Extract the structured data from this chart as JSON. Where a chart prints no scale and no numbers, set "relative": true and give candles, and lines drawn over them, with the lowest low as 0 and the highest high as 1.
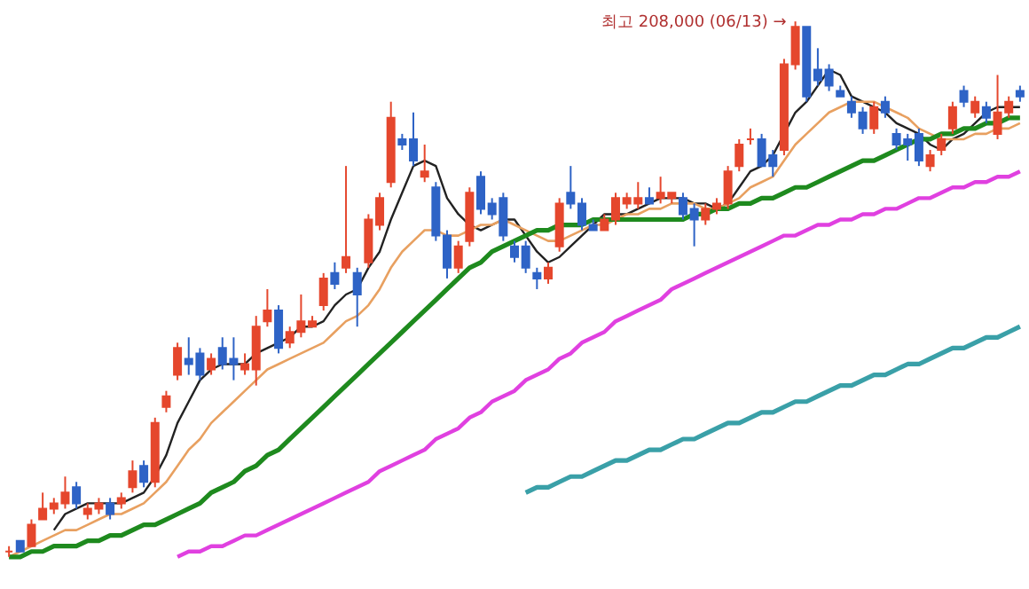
{
  "chart_data": {
    "type": "candlestick",
    "relative": true,
    "categories": [
      null,
      null,
      null,
      null,
      null,
      null,
      null,
      null,
      null,
      null,
      null,
      null,
      null,
      null,
      null,
      null,
      null,
      null,
      null,
      null,
      null,
      null,
      null,
      null,
      null,
      null,
      null,
      null,
      null,
      null,
      null,
      null,
      null,
      null,
      null,
      null,
      null,
      null,
      null,
      null,
      null,
      null,
      null,
      null,
      null,
      null,
      null,
      null,
      null,
      null,
      null,
      null,
      null,
      null,
      null,
      null,
      null,
      null,
      null,
      null,
      null,
      null,
      null,
      null,
      null,
      null,
      null,
      null,
      null,
      null,
      null,
      null,
      null,
      null,
      null,
      null,
      null,
      null,
      null,
      null,
      null,
      null,
      null,
      null,
      null,
      null,
      null,
      null,
      null,
      null,
      null
    ],
    "ohlc": [
      [
        0.01,
        0.02,
        0,
        0.01
      ],
      [
        0.03,
        0.03,
        0.01,
        0.01
      ],
      [
        0.02,
        0.07,
        0.02,
        0.06
      ],
      [
        0.07,
        0.12,
        0.07,
        0.09
      ],
      [
        0.09,
        0.11,
        0.08,
        0.1
      ],
      [
        0.1,
        0.15,
        0.09,
        0.12
      ],
      [
        0.13,
        0.14,
        0.09,
        0.1
      ],
      [
        0.08,
        0.1,
        0.07,
        0.09
      ],
      [
        0.09,
        0.11,
        0.08,
        0.1
      ],
      [
        0.1,
        0.11,
        0.07,
        0.08
      ],
      [
        0.1,
        0.12,
        0.09,
        0.11
      ],
      [
        0.13,
        0.18,
        0.12,
        0.16
      ],
      [
        0.17,
        0.18,
        0.13,
        0.14
      ],
      [
        0.14,
        0.26,
        0.13,
        0.25
      ],
      [
        0.28,
        0.31,
        0.27,
        0.3
      ],
      [
        0.34,
        0.4,
        0.33,
        0.39
      ],
      [
        0.37,
        0.41,
        0.34,
        0.36
      ],
      [
        0.38,
        0.39,
        0.33,
        0.34
      ],
      [
        0.35,
        0.38,
        0.34,
        0.37
      ],
      [
        0.39,
        0.41,
        0.35,
        0.36
      ],
      [
        0.37,
        0.41,
        0.33,
        0.36
      ],
      [
        0.35,
        0.38,
        0.34,
        0.36
      ],
      [
        0.35,
        0.45,
        0.32,
        0.43
      ],
      [
        0.44,
        0.5,
        0.43,
        0.46
      ],
      [
        0.46,
        0.47,
        0.38,
        0.39
      ],
      [
        0.4,
        0.43,
        0.39,
        0.42
      ],
      [
        0.42,
        0.49,
        0.41,
        0.44
      ],
      [
        0.43,
        0.45,
        0.43,
        0.44
      ],
      [
        0.47,
        0.53,
        0.46,
        0.52
      ],
      [
        0.53,
        0.55,
        0.5,
        0.51
      ],
      [
        0.54,
        0.73,
        0.53,
        0.56
      ],
      [
        0.53,
        0.54,
        0.43,
        0.49
      ],
      [
        0.55,
        0.64,
        0.54,
        0.63
      ],
      [
        0.62,
        0.68,
        0.61,
        0.67
      ],
      [
        0.7,
        0.85,
        0.69,
        0.82
      ],
      [
        0.78,
        0.79,
        0.76,
        0.77
      ],
      [
        0.78,
        0.83,
        0.73,
        0.74
      ],
      [
        0.71,
        0.77,
        0.7,
        0.72
      ],
      [
        0.69,
        0.7,
        0.59,
        0.6
      ],
      [
        0.6,
        0.61,
        0.52,
        0.54
      ],
      [
        0.54,
        0.59,
        0.53,
        0.58
      ],
      [
        0.59,
        0.69,
        0.58,
        0.68
      ],
      [
        0.71,
        0.72,
        0.64,
        0.65
      ],
      [
        0.66,
        0.67,
        0.63,
        0.64
      ],
      [
        0.67,
        0.68,
        0.59,
        0.6
      ],
      [
        0.58,
        0.59,
        0.55,
        0.56
      ],
      [
        0.58,
        0.59,
        0.53,
        0.54
      ],
      [
        0.53,
        0.54,
        0.5,
        0.52
      ],
      [
        0.52,
        0.55,
        0.51,
        0.54
      ],
      [
        0.58,
        0.67,
        0.57,
        0.66
      ],
      [
        0.68,
        0.73,
        0.65,
        0.66
      ],
      [
        0.66,
        0.67,
        0.61,
        0.62
      ],
      [
        0.62,
        0.63,
        0.61,
        0.61
      ],
      [
        0.61,
        0.64,
        0.61,
        0.63
      ],
      [
        0.63,
        0.68,
        0.62,
        0.67
      ],
      [
        0.66,
        0.68,
        0.65,
        0.67
      ],
      [
        0.66,
        0.7,
        0.65,
        0.67
      ],
      [
        0.67,
        0.69,
        0.66,
        0.66
      ],
      [
        0.67,
        0.71,
        0.66,
        0.68
      ],
      [
        0.67,
        0.68,
        0.66,
        0.68
      ],
      [
        0.67,
        0.68,
        0.63,
        0.64
      ],
      [
        0.65,
        0.66,
        0.58,
        0.63
      ],
      [
        0.63,
        0.66,
        0.62,
        0.65
      ],
      [
        0.65,
        0.67,
        0.64,
        0.66
      ],
      [
        0.66,
        0.73,
        0.65,
        0.72
      ],
      [
        0.73,
        0.78,
        0.72,
        0.77
      ],
      [
        0.78,
        0.8,
        0.77,
        0.78
      ],
      [
        0.78,
        0.79,
        0.73,
        0.73
      ],
      [
        0.75,
        0.76,
        0.71,
        0.73
      ],
      [
        0.76,
        0.93,
        0.75,
        0.92
      ],
      [
        0.92,
        1,
        0.91,
        0.99
      ],
      [
        0.99,
        0.99,
        0.85,
        0.86
      ],
      [
        0.91,
        0.95,
        0.88,
        0.89
      ],
      [
        0.91,
        0.92,
        0.87,
        0.88
      ],
      [
        0.87,
        0.88,
        0.86,
        0.86
      ],
      [
        0.85,
        0.86,
        0.82,
        0.83
      ],
      [
        0.83,
        0.84,
        0.79,
        0.8
      ],
      [
        0.8,
        0.85,
        0.79,
        0.84
      ],
      [
        0.85,
        0.86,
        0.82,
        0.83
      ],
      [
        0.79,
        0.8,
        0.76,
        0.77
      ],
      [
        0.78,
        0.79,
        0.74,
        0.77
      ],
      [
        0.79,
        0.8,
        0.73,
        0.74
      ],
      [
        0.73,
        0.76,
        0.72,
        0.75
      ],
      [
        0.76,
        0.79,
        0.75,
        0.78
      ],
      [
        0.8,
        0.85,
        0.79,
        0.84
      ],
      [
        0.87,
        0.88,
        0.84,
        0.85
      ],
      [
        0.83,
        0.86,
        0.82,
        0.85
      ],
      [
        0.84,
        0.85,
        0.81,
        0.82
      ],
      [
        0.79,
        0.9,
        0.78,
        0.83
      ],
      [
        0.83,
        0.86,
        0.82,
        0.85
      ],
      [
        0.87,
        0.88,
        0.85,
        0.86
      ]
    ],
    "colors": [
      "#e5472d",
      "#2e63c6",
      "#e5472d",
      "#e5472d",
      "#e5472d",
      "#e5472d",
      "#2e63c6",
      "#e5472d",
      "#e5472d",
      "#2e63c6",
      "#e5472d",
      "#e5472d",
      "#2e63c6",
      "#e5472d",
      "#e5472d",
      "#e5472d",
      "#2e63c6",
      "#2e63c6",
      "#e5472d",
      "#2e63c6",
      "#2e63c6",
      "#e5472d",
      "#e5472d",
      "#e5472d",
      "#2e63c6",
      "#e5472d",
      "#e5472d",
      "#e5472d",
      "#e5472d",
      "#2e63c6",
      "#e5472d",
      "#2e63c6",
      "#e5472d",
      "#e5472d",
      "#e5472d",
      "#2e63c6",
      "#2e63c6",
      "#e5472d",
      "#2e63c6",
      "#2e63c6",
      "#e5472d",
      "#e5472d",
      "#2e63c6",
      "#2e63c6",
      "#2e63c6",
      "#2e63c6",
      "#2e63c6",
      "#2e63c6",
      "#e5472d",
      "#e5472d",
      "#2e63c6",
      "#2e63c6",
      "#2e63c6",
      "#e5472d",
      "#e5472d",
      "#e5472d",
      "#e5472d",
      "#2e63c6",
      "#e5472d",
      "#e5472d",
      "#2e63c6",
      "#2e63c6",
      "#e5472d",
      "#e5472d",
      "#e5472d",
      "#e5472d",
      "#e5472d",
      "#2e63c6",
      "#2e63c6",
      "#e5472d",
      "#e5472d",
      "#2e63c6",
      "#2e63c6",
      "#2e63c6",
      "#2e63c6",
      "#2e63c6",
      "#2e63c6",
      "#e5472d",
      "#2e63c6",
      "#2e63c6",
      "#2e63c6",
      "#2e63c6",
      "#e5472d",
      "#e5472d",
      "#e5472d",
      "#2e63c6",
      "#e5472d",
      "#2e63c6",
      "#e5472d",
      "#e5472d",
      "#2e63c6"
    ],
    "series": [
      {
        "type": "line",
        "color": "#222222",
        "values": [
          null,
          null,
          null,
          null,
          0.05,
          0.08,
          0.09,
          0.1,
          0.1,
          0.1,
          0.1,
          0.11,
          0.12,
          0.15,
          0.19,
          0.25,
          0.29,
          0.33,
          0.35,
          0.36,
          0.36,
          0.36,
          0.38,
          0.39,
          0.4,
          0.41,
          0.43,
          0.43,
          0.44,
          0.47,
          0.49,
          0.5,
          0.54,
          0.57,
          0.63,
          0.68,
          0.73,
          0.74,
          0.73,
          0.67,
          0.64,
          0.62,
          0.61,
          0.62,
          0.63,
          0.63,
          0.6,
          0.57,
          0.55,
          0.56,
          0.58,
          0.6,
          0.62,
          0.64,
          0.64,
          0.64,
          0.65,
          0.66,
          0.67,
          0.67,
          0.67,
          0.66,
          0.66,
          0.65,
          0.66,
          0.69,
          0.72,
          0.73,
          0.75,
          0.79,
          0.83,
          0.85,
          0.88,
          0.91,
          0.9,
          0.86,
          0.85,
          0.84,
          0.83,
          0.81,
          0.8,
          0.79,
          0.77,
          0.76,
          0.78,
          0.79,
          0.81,
          0.83,
          0.84,
          0.84,
          0.84
        ]
      },
      {
        "type": "line",
        "color": "#e8a060",
        "values": [
          0.0,
          0.01,
          0.02,
          0.03,
          0.04,
          0.05,
          0.05,
          0.06,
          0.07,
          0.08,
          0.08,
          0.09,
          0.1,
          0.12,
          0.14,
          0.17,
          0.2,
          0.22,
          0.25,
          0.27,
          0.29,
          0.31,
          0.33,
          0.35,
          0.36,
          0.37,
          0.38,
          0.39,
          0.4,
          0.42,
          0.44,
          0.45,
          0.47,
          0.5,
          0.54,
          0.57,
          0.59,
          0.61,
          0.61,
          0.6,
          0.6,
          0.61,
          0.62,
          0.62,
          0.63,
          0.62,
          0.61,
          0.6,
          0.59,
          0.59,
          0.6,
          0.61,
          0.62,
          0.62,
          0.63,
          0.64,
          0.64,
          0.65,
          0.65,
          0.66,
          0.66,
          0.66,
          0.65,
          0.65,
          0.66,
          0.67,
          0.69,
          0.7,
          0.71,
          0.74,
          0.77,
          0.79,
          0.81,
          0.83,
          0.84,
          0.85,
          0.85,
          0.85,
          0.84,
          0.83,
          0.82,
          0.8,
          0.79,
          0.78,
          0.78,
          0.78,
          0.79,
          0.79,
          0.8,
          0.8,
          0.81
        ]
      },
      {
        "type": "line",
        "color": "#1e8a1e",
        "values": [
          0.0,
          0.0,
          0.01,
          0.01,
          0.02,
          0.02,
          0.02,
          0.03,
          0.03,
          0.04,
          0.04,
          0.05,
          0.06,
          0.06,
          0.07,
          0.08,
          0.09,
          0.1,
          0.12,
          0.13,
          0.14,
          0.16,
          0.17,
          0.19,
          0.2,
          0.22,
          0.24,
          0.26,
          0.28,
          0.3,
          0.32,
          0.34,
          0.36,
          0.38,
          0.4,
          0.42,
          0.44,
          0.46,
          0.48,
          0.5,
          0.52,
          0.54,
          0.55,
          0.57,
          0.58,
          0.59,
          0.6,
          0.61,
          0.61,
          0.62,
          0.62,
          0.62,
          0.63,
          0.63,
          0.63,
          0.63,
          0.63,
          0.63,
          0.63,
          0.63,
          0.63,
          0.64,
          0.64,
          0.65,
          0.65,
          0.66,
          0.66,
          0.67,
          0.67,
          0.68,
          0.69,
          0.69,
          0.7,
          0.71,
          0.72,
          0.73,
          0.74,
          0.74,
          0.75,
          0.76,
          0.77,
          0.78,
          0.78,
          0.79,
          0.79,
          0.8,
          0.8,
          0.81,
          0.81,
          0.82,
          0.82
        ]
      },
      {
        "type": "line",
        "color": "#e040e0",
        "values": [
          null,
          null,
          null,
          null,
          null,
          null,
          null,
          null,
          null,
          null,
          null,
          null,
          null,
          null,
          null,
          0.0,
          0.01,
          0.01,
          0.02,
          0.02,
          0.03,
          0.04,
          0.04,
          0.05,
          0.06,
          0.07,
          0.08,
          0.09,
          0.1,
          0.11,
          0.12,
          0.13,
          0.14,
          0.16,
          0.17,
          0.18,
          0.19,
          0.2,
          0.22,
          0.23,
          0.24,
          0.26,
          0.27,
          0.29,
          0.3,
          0.31,
          0.33,
          0.34,
          0.35,
          0.37,
          0.38,
          0.4,
          0.41,
          0.42,
          0.44,
          0.45,
          0.46,
          0.47,
          0.48,
          0.5,
          0.51,
          0.52,
          0.53,
          0.54,
          0.55,
          0.56,
          0.57,
          0.58,
          0.59,
          0.6,
          0.6,
          0.61,
          0.62,
          0.62,
          0.63,
          0.63,
          0.64,
          0.64,
          0.65,
          0.65,
          0.66,
          0.67,
          0.67,
          0.68,
          0.69,
          0.69,
          0.7,
          0.7,
          0.71,
          0.71,
          0.72
        ]
      },
      {
        "type": "line",
        "color": "#3aa0a8",
        "values": [
          null,
          null,
          null,
          null,
          null,
          null,
          null,
          null,
          null,
          null,
          null,
          null,
          null,
          null,
          null,
          null,
          null,
          null,
          null,
          null,
          null,
          null,
          null,
          null,
          null,
          null,
          null,
          null,
          null,
          null,
          null,
          null,
          null,
          null,
          null,
          null,
          null,
          null,
          null,
          null,
          null,
          null,
          null,
          null,
          null,
          null,
          0.12,
          0.13,
          0.13,
          0.14,
          0.15,
          0.15,
          0.16,
          0.17,
          0.18,
          0.18,
          0.19,
          0.2,
          0.2,
          0.21,
          0.22,
          0.22,
          0.23,
          0.24,
          0.25,
          0.25,
          0.26,
          0.27,
          0.27,
          0.28,
          0.29,
          0.29,
          0.3,
          0.31,
          0.32,
          0.32,
          0.33,
          0.34,
          0.34,
          0.35,
          0.36,
          0.36,
          0.37,
          0.38,
          0.39,
          0.39,
          0.4,
          0.41,
          0.41,
          0.42,
          0.43
        ]
      }
    ],
    "annotations": [
      "최고 208,000 (06/13) →"
    ]
  }
}
